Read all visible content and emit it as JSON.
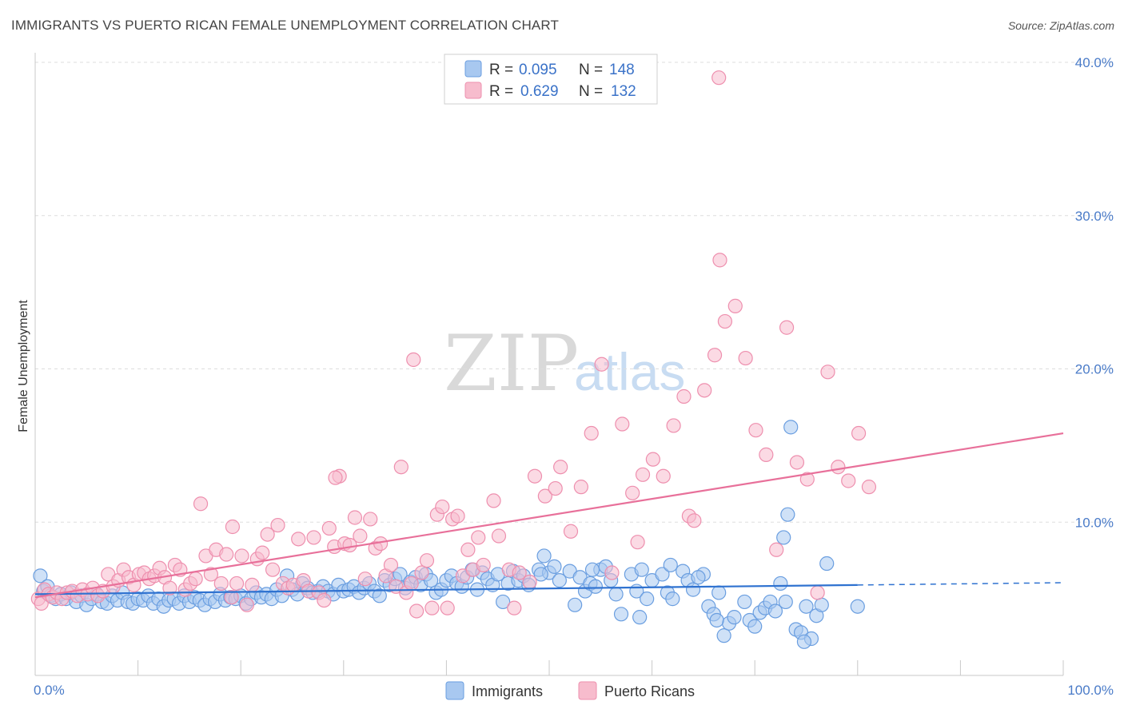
{
  "header": {
    "title": "IMMIGRANTS VS PUERTO RICAN FEMALE UNEMPLOYMENT CORRELATION CHART",
    "source": "Source: ZipAtlas.com"
  },
  "watermark": {
    "zip": "ZIP",
    "atlas": "atlas"
  },
  "legend": {
    "rows": [
      {
        "r_label": "R =",
        "r_value": "0.095",
        "n_label": "N =",
        "n_value": "148"
      },
      {
        "r_label": "R =",
        "r_value": "0.629",
        "n_label": "N =",
        "n_value": "132"
      }
    ]
  },
  "bottom_legend": [
    "Immigrants",
    "Puerto Ricans"
  ],
  "colors": {
    "immigrants_fill": "#a8c8f0",
    "immigrants_stroke": "#6a9ee0",
    "immigrants_line": "#2f72d0",
    "puerto_fill": "#f7bccd",
    "puerto_stroke": "#ee8fae",
    "puerto_line": "#e8709a",
    "tick_text": "#4a7bc8"
  },
  "chart_data": {
    "type": "scatter",
    "title": "IMMIGRANTS VS PUERTO RICAN FEMALE UNEMPLOYMENT CORRELATION CHART",
    "xlabel": "",
    "ylabel": "Female Unemployment",
    "xlim": [
      0,
      100
    ],
    "ylim": [
      0,
      40
    ],
    "x_tick_labels": [
      "0.0%",
      "100.0%"
    ],
    "y_ticks": [
      10,
      20,
      30,
      40
    ],
    "y_tick_labels": [
      "10.0%",
      "20.0%",
      "30.0%",
      "40.0%"
    ],
    "grid": "horizontal dashed",
    "legend_position": "top-center",
    "series": [
      {
        "name": "Immigrants",
        "r": 0.095,
        "n": 148,
        "trend": {
          "x": [
            0,
            80
          ],
          "y": [
            5.3,
            5.9
          ],
          "dashed_extension": {
            "x": [
              80,
              100
            ],
            "y": [
              5.9,
              6.05
            ]
          }
        },
        "points": [
          [
            0.5,
            6.5
          ],
          [
            0.8,
            5.5
          ],
          [
            1.2,
            5.8
          ],
          [
            1.5,
            5.2
          ],
          [
            2.0,
            5.0
          ],
          [
            2.5,
            5.3
          ],
          [
            3.0,
            5.0
          ],
          [
            3.5,
            5.4
          ],
          [
            4.0,
            4.8
          ],
          [
            4.5,
            5.2
          ],
          [
            5.0,
            4.6
          ],
          [
            5.5,
            5.0
          ],
          [
            6.0,
            5.3
          ],
          [
            6.5,
            4.8
          ],
          [
            7.0,
            4.7
          ],
          [
            7.5,
            5.2
          ],
          [
            8.0,
            4.9
          ],
          [
            8.5,
            5.4
          ],
          [
            9.0,
            4.8
          ],
          [
            9.5,
            4.7
          ],
          [
            10.0,
            5.0
          ],
          [
            10.5,
            4.9
          ],
          [
            11.0,
            5.2
          ],
          [
            11.5,
            4.7
          ],
          [
            12.0,
            5.0
          ],
          [
            12.5,
            4.5
          ],
          [
            13.0,
            4.9
          ],
          [
            13.5,
            5.0
          ],
          [
            14.0,
            4.7
          ],
          [
            14.5,
            5.2
          ],
          [
            15.0,
            4.8
          ],
          [
            15.5,
            5.1
          ],
          [
            16.0,
            4.9
          ],
          [
            16.5,
            4.6
          ],
          [
            17.0,
            5.0
          ],
          [
            17.5,
            4.8
          ],
          [
            18.0,
            5.3
          ],
          [
            18.5,
            4.9
          ],
          [
            19.0,
            5.1
          ],
          [
            19.5,
            5.0
          ],
          [
            20.0,
            5.2
          ],
          [
            20.5,
            4.7
          ],
          [
            21.0,
            5.0
          ],
          [
            21.5,
            5.4
          ],
          [
            22.0,
            5.1
          ],
          [
            22.5,
            5.3
          ],
          [
            23.0,
            5.0
          ],
          [
            23.5,
            5.6
          ],
          [
            24.0,
            5.2
          ],
          [
            24.5,
            6.5
          ],
          [
            25.0,
            5.6
          ],
          [
            25.5,
            5.3
          ],
          [
            26.0,
            6.0
          ],
          [
            26.5,
            5.7
          ],
          [
            27.0,
            5.4
          ],
          [
            27.5,
            5.5
          ],
          [
            28.0,
            5.8
          ],
          [
            28.5,
            5.5
          ],
          [
            29.0,
            5.3
          ],
          [
            29.5,
            5.9
          ],
          [
            30.0,
            5.5
          ],
          [
            30.5,
            5.6
          ],
          [
            31.0,
            5.8
          ],
          [
            31.5,
            5.4
          ],
          [
            32.0,
            5.7
          ],
          [
            32.5,
            6.0
          ],
          [
            33.0,
            5.5
          ],
          [
            33.5,
            5.2
          ],
          [
            34.0,
            6.2
          ],
          [
            34.5,
            5.9
          ],
          [
            35.0,
            6.3
          ],
          [
            35.5,
            6.6
          ],
          [
            36.0,
            5.7
          ],
          [
            36.5,
            6.1
          ],
          [
            37.0,
            6.4
          ],
          [
            37.5,
            5.9
          ],
          [
            38.0,
            6.6
          ],
          [
            38.5,
            6.2
          ],
          [
            39.0,
            5.4
          ],
          [
            39.5,
            5.6
          ],
          [
            40.0,
            6.2
          ],
          [
            40.5,
            6.5
          ],
          [
            41.0,
            6.0
          ],
          [
            41.5,
            5.8
          ],
          [
            42.0,
            6.4
          ],
          [
            42.5,
            6.9
          ],
          [
            43.0,
            5.6
          ],
          [
            43.5,
            6.7
          ],
          [
            44.0,
            6.3
          ],
          [
            44.5,
            5.9
          ],
          [
            45.0,
            6.6
          ],
          [
            46.0,
            6.0
          ],
          [
            46.5,
            6.8
          ],
          [
            47.0,
            6.2
          ],
          [
            47.5,
            6.5
          ],
          [
            48.0,
            5.9
          ],
          [
            49.0,
            6.9
          ],
          [
            49.5,
            7.8
          ],
          [
            50.0,
            6.7
          ],
          [
            50.5,
            7.1
          ],
          [
            51.0,
            6.2
          ],
          [
            52.0,
            6.8
          ],
          [
            52.5,
            4.6
          ],
          [
            53.0,
            6.4
          ],
          [
            53.5,
            5.5
          ],
          [
            54.0,
            6.0
          ],
          [
            54.5,
            5.8
          ],
          [
            55.0,
            6.9
          ],
          [
            55.5,
            7.1
          ],
          [
            56.0,
            6.2
          ],
          [
            56.5,
            5.3
          ],
          [
            57.0,
            4.0
          ],
          [
            58.0,
            6.6
          ],
          [
            58.5,
            5.5
          ],
          [
            59.0,
            6.9
          ],
          [
            59.5,
            5.0
          ],
          [
            60.0,
            6.2
          ],
          [
            61.0,
            6.6
          ],
          [
            61.5,
            5.4
          ],
          [
            62.0,
            5.0
          ],
          [
            63.0,
            6.8
          ],
          [
            63.5,
            6.2
          ],
          [
            64.0,
            5.6
          ],
          [
            65.0,
            6.6
          ],
          [
            65.5,
            4.5
          ],
          [
            66.0,
            4.0
          ],
          [
            66.5,
            5.4
          ],
          [
            67.0,
            2.6
          ],
          [
            67.5,
            3.4
          ],
          [
            68.0,
            3.8
          ],
          [
            64.5,
            6.4
          ],
          [
            69.0,
            4.8
          ],
          [
            69.5,
            3.6
          ],
          [
            70.0,
            3.2
          ],
          [
            70.5,
            4.1
          ],
          [
            71.0,
            4.4
          ],
          [
            71.5,
            4.8
          ],
          [
            72.0,
            4.2
          ],
          [
            72.5,
            6.0
          ],
          [
            73.0,
            4.8
          ],
          [
            73.5,
            16.2
          ],
          [
            74.0,
            3.0
          ],
          [
            74.5,
            2.8
          ],
          [
            75.0,
            4.5
          ],
          [
            75.5,
            2.4
          ],
          [
            76.0,
            3.9
          ],
          [
            76.5,
            4.6
          ],
          [
            77.0,
            7.3
          ],
          [
            80.0,
            4.5
          ],
          [
            72.8,
            9.0
          ],
          [
            73.2,
            10.5
          ],
          [
            74.8,
            2.2
          ],
          [
            66.3,
            3.6
          ],
          [
            61.8,
            7.2
          ],
          [
            45.5,
            4.8
          ],
          [
            49.2,
            6.6
          ],
          [
            54.2,
            6.9
          ],
          [
            58.8,
            3.8
          ]
        ]
      },
      {
        "name": "Puerto Ricans",
        "r": 0.629,
        "n": 132,
        "trend": {
          "x": [
            0,
            100
          ],
          "y": [
            5.1,
            15.8
          ]
        },
        "points": [
          [
            0.3,
            5.0
          ],
          [
            0.6,
            4.7
          ],
          [
            0.9,
            5.6
          ],
          [
            1.3,
            5.3
          ],
          [
            1.7,
            5.1
          ],
          [
            2.1,
            5.4
          ],
          [
            2.6,
            5.0
          ],
          [
            3.1,
            5.4
          ],
          [
            3.6,
            5.5
          ],
          [
            4.1,
            5.2
          ],
          [
            4.6,
            5.6
          ],
          [
            5.1,
            5.3
          ],
          [
            5.6,
            5.7
          ],
          [
            6.1,
            5.2
          ],
          [
            6.6,
            5.5
          ],
          [
            7.1,
            6.6
          ],
          [
            7.6,
            5.8
          ],
          [
            8.1,
            6.2
          ],
          [
            8.6,
            6.9
          ],
          [
            9.1,
            6.4
          ],
          [
            9.6,
            5.9
          ],
          [
            10.1,
            6.6
          ],
          [
            10.6,
            6.7
          ],
          [
            11.1,
            6.3
          ],
          [
            11.6,
            6.5
          ],
          [
            12.1,
            7.0
          ],
          [
            12.6,
            6.4
          ],
          [
            13.1,
            5.7
          ],
          [
            13.6,
            7.2
          ],
          [
            14.1,
            6.9
          ],
          [
            14.6,
            5.6
          ],
          [
            15.1,
            6.0
          ],
          [
            15.6,
            6.3
          ],
          [
            16.1,
            11.2
          ],
          [
            16.6,
            7.8
          ],
          [
            17.1,
            6.6
          ],
          [
            17.6,
            8.2
          ],
          [
            18.1,
            6.0
          ],
          [
            18.6,
            7.9
          ],
          [
            19.1,
            5.1
          ],
          [
            19.6,
            6.0
          ],
          [
            20.1,
            7.8
          ],
          [
            20.6,
            4.6
          ],
          [
            21.1,
            5.9
          ],
          [
            21.6,
            7.6
          ],
          [
            22.1,
            8.0
          ],
          [
            22.6,
            9.2
          ],
          [
            23.1,
            6.9
          ],
          [
            23.6,
            9.8
          ],
          [
            24.1,
            6.0
          ],
          [
            24.6,
            5.7
          ],
          [
            25.1,
            5.9
          ],
          [
            25.6,
            8.9
          ],
          [
            26.1,
            6.2
          ],
          [
            26.6,
            5.5
          ],
          [
            27.1,
            9.0
          ],
          [
            27.6,
            5.4
          ],
          [
            28.1,
            4.9
          ],
          [
            28.6,
            9.6
          ],
          [
            29.1,
            8.4
          ],
          [
            29.6,
            13.0
          ],
          [
            30.1,
            8.6
          ],
          [
            30.6,
            8.5
          ],
          [
            31.1,
            10.3
          ],
          [
            31.6,
            9.1
          ],
          [
            32.1,
            6.3
          ],
          [
            32.6,
            10.2
          ],
          [
            33.1,
            8.3
          ],
          [
            33.6,
            8.6
          ],
          [
            34.1,
            6.5
          ],
          [
            34.6,
            7.2
          ],
          [
            35.1,
            5.8
          ],
          [
            35.6,
            13.6
          ],
          [
            36.1,
            5.4
          ],
          [
            36.6,
            6.0
          ],
          [
            37.1,
            4.2
          ],
          [
            37.6,
            6.7
          ],
          [
            38.1,
            7.5
          ],
          [
            38.6,
            4.4
          ],
          [
            39.1,
            10.5
          ],
          [
            39.6,
            11.0
          ],
          [
            40.1,
            4.4
          ],
          [
            40.6,
            10.2
          ],
          [
            41.1,
            10.4
          ],
          [
            41.6,
            6.5
          ],
          [
            42.1,
            8.2
          ],
          [
            42.6,
            6.9
          ],
          [
            43.1,
            9.0
          ],
          [
            43.6,
            7.2
          ],
          [
            44.6,
            11.4
          ],
          [
            45.1,
            9.1
          ],
          [
            46.1,
            6.9
          ],
          [
            46.6,
            4.4
          ],
          [
            47.1,
            6.7
          ],
          [
            48.1,
            6.1
          ],
          [
            48.6,
            13.0
          ],
          [
            49.6,
            11.7
          ],
          [
            50.6,
            12.2
          ],
          [
            51.1,
            13.6
          ],
          [
            52.1,
            9.4
          ],
          [
            53.1,
            12.3
          ],
          [
            54.1,
            15.8
          ],
          [
            55.1,
            20.3
          ],
          [
            56.1,
            6.7
          ],
          [
            57.1,
            16.4
          ],
          [
            58.1,
            11.9
          ],
          [
            58.6,
            8.7
          ],
          [
            59.1,
            13.1
          ],
          [
            60.1,
            14.1
          ],
          [
            61.1,
            13.0
          ],
          [
            62.1,
            16.3
          ],
          [
            63.1,
            18.2
          ],
          [
            63.6,
            10.4
          ],
          [
            64.1,
            10.1
          ],
          [
            65.1,
            18.6
          ],
          [
            66.1,
            20.9
          ],
          [
            66.6,
            27.1
          ],
          [
            67.1,
            23.1
          ],
          [
            68.1,
            24.1
          ],
          [
            69.1,
            20.7
          ],
          [
            70.1,
            16.0
          ],
          [
            71.1,
            14.4
          ],
          [
            72.1,
            8.2
          ],
          [
            73.1,
            22.7
          ],
          [
            74.1,
            13.9
          ],
          [
            75.1,
            12.8
          ],
          [
            76.1,
            5.4
          ],
          [
            77.1,
            19.8
          ],
          [
            78.1,
            13.6
          ],
          [
            79.1,
            12.7
          ],
          [
            80.1,
            15.8
          ],
          [
            81.1,
            12.3
          ],
          [
            36.8,
            20.6
          ],
          [
            66.5,
            39.0
          ],
          [
            19.2,
            9.7
          ],
          [
            29.2,
            12.9
          ]
        ]
      }
    ]
  }
}
